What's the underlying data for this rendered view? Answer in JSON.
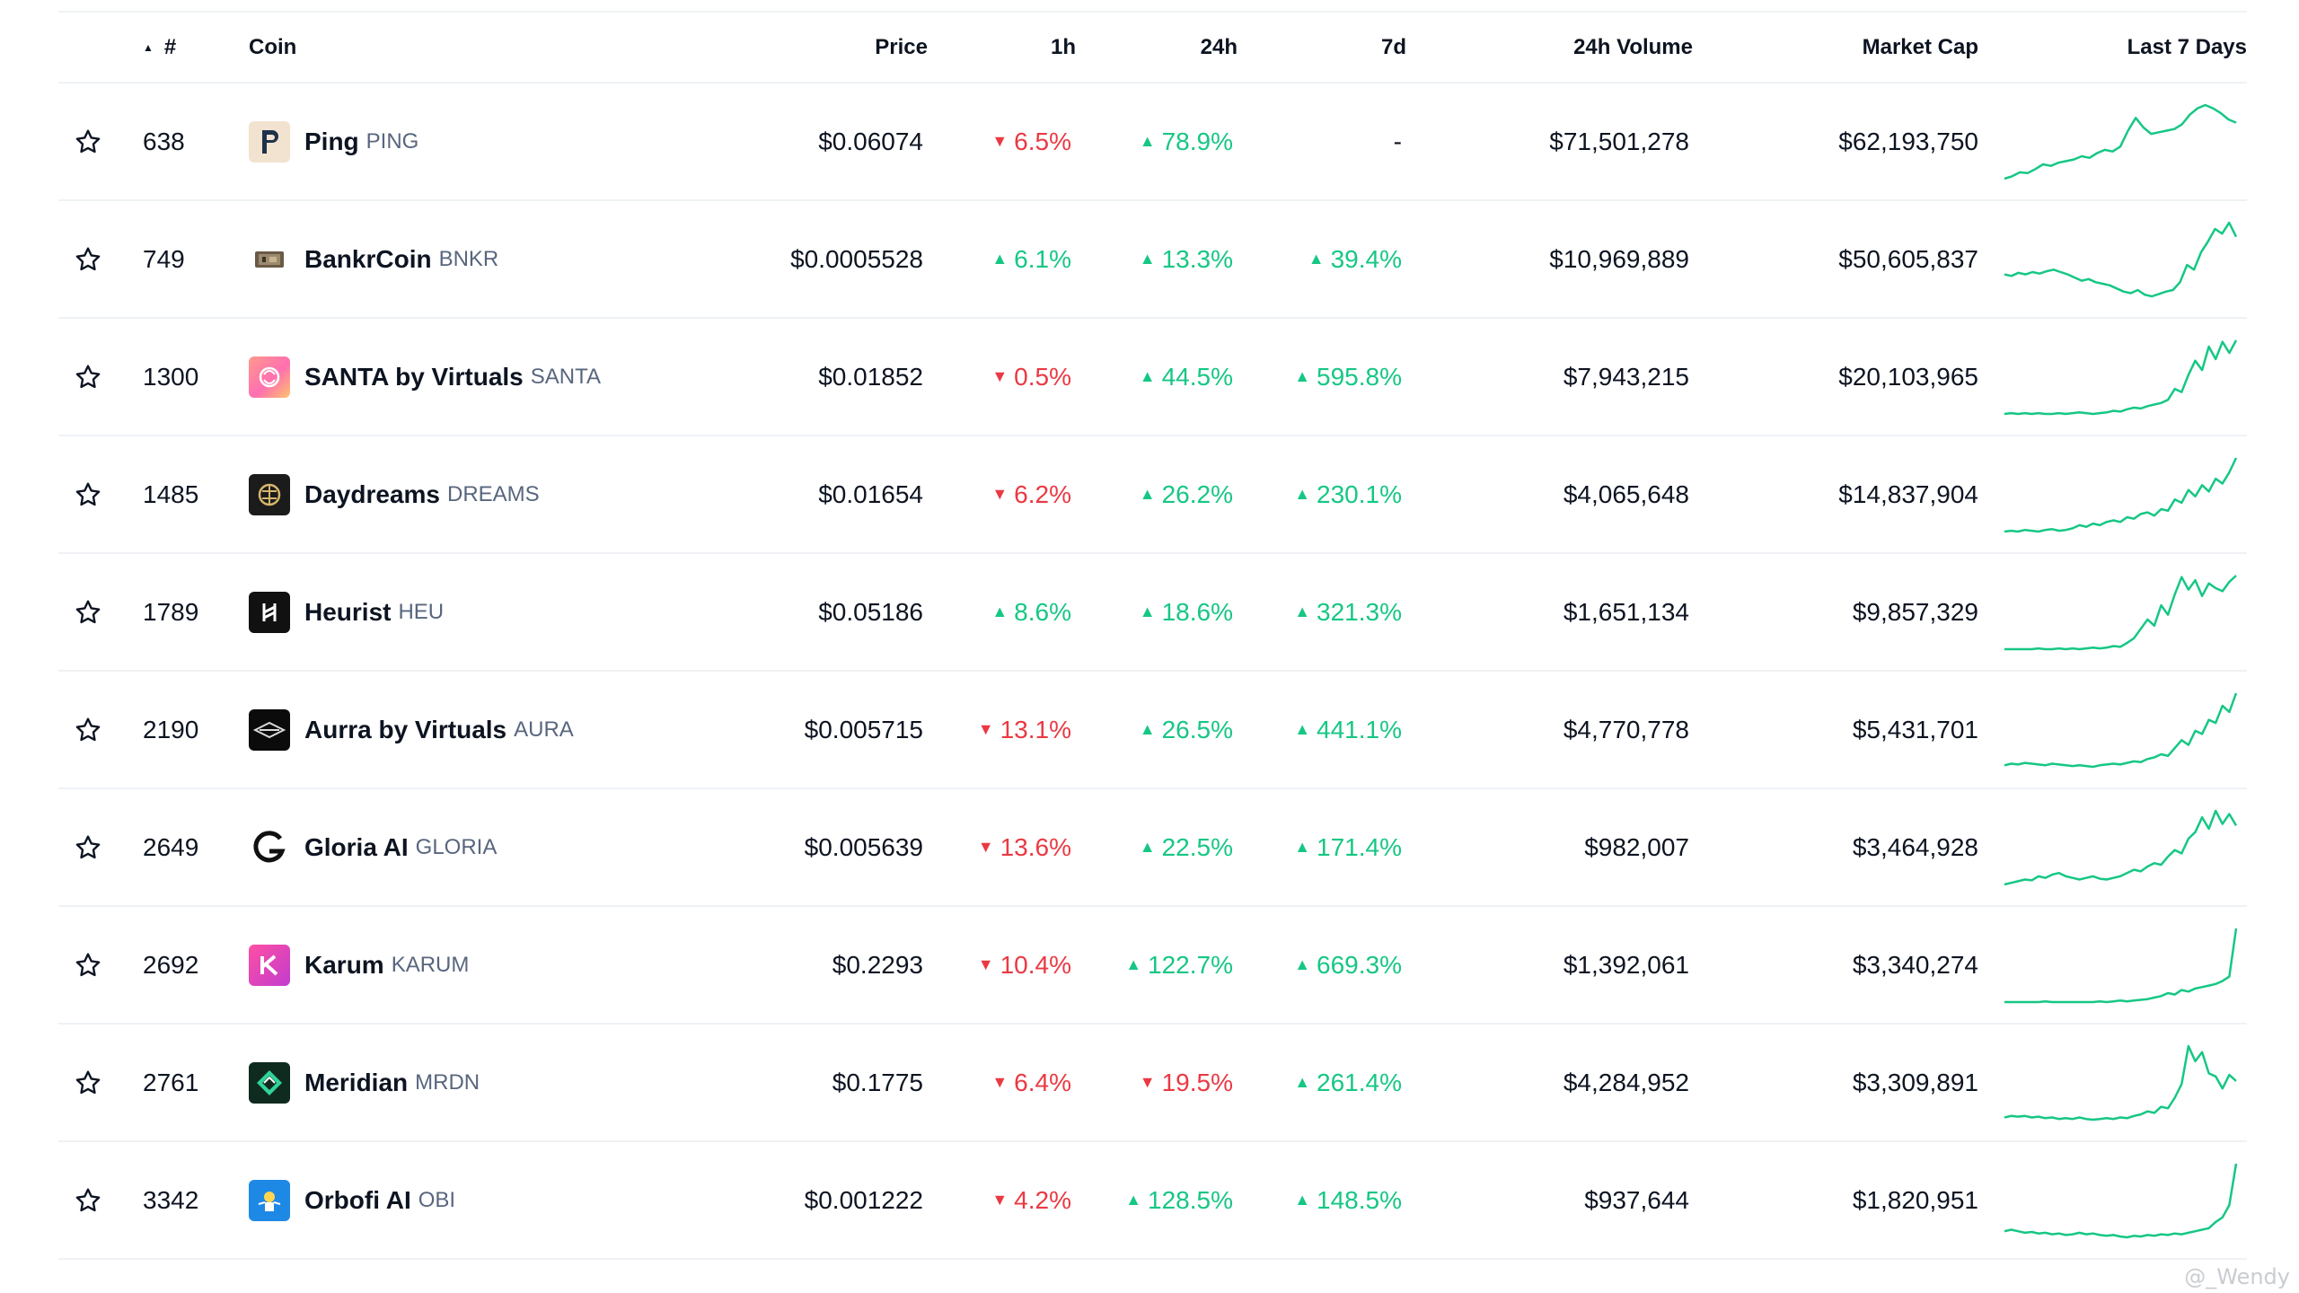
{
  "header": {
    "sort_indicator": "▲",
    "rank": "#",
    "coin": "Coin",
    "price": "Price",
    "h1": "1h",
    "h24": "24h",
    "d7": "7d",
    "volume": "24h Volume",
    "market_cap": "Market Cap",
    "last7": "Last 7 Days"
  },
  "colors": {
    "up": "#16c784",
    "down": "#ea3943",
    "sparkline": "#16c784"
  },
  "rows": [
    {
      "rank": "638",
      "name": "Ping",
      "symbol": "PING",
      "logo_icon": "ping-icon",
      "price": "$0.06074",
      "h1": "6.5%",
      "h1_dir": "down",
      "h24": "78.9%",
      "h24_dir": "up",
      "d7": "-",
      "d7_dir": "none",
      "volume": "$71,501,278",
      "mcap": "$62,193,750",
      "spark": [
        2,
        5,
        10,
        9,
        14,
        20,
        18,
        22,
        24,
        26,
        30,
        28,
        34,
        38,
        36,
        42,
        62,
        78,
        66,
        58,
        60,
        62,
        64,
        70,
        82,
        90,
        94,
        90,
        84,
        76,
        72
      ]
    },
    {
      "rank": "749",
      "name": "BankrCoin",
      "symbol": "BNKR",
      "logo_icon": "bankrcoin-icon",
      "price": "$0.0005528",
      "h1": "6.1%",
      "h1_dir": "up",
      "h24": "13.3%",
      "h24_dir": "up",
      "d7": "39.4%",
      "d7_dir": "up",
      "volume": "$10,969,889",
      "mcap": "$50,605,837",
      "spark": [
        30,
        28,
        32,
        30,
        33,
        31,
        34,
        36,
        33,
        30,
        26,
        22,
        24,
        20,
        18,
        16,
        12,
        8,
        6,
        10,
        4,
        2,
        5,
        8,
        10,
        20,
        42,
        36,
        58,
        72,
        88,
        82,
        96,
        78
      ]
    },
    {
      "rank": "1300",
      "name": "SANTA by Virtuals",
      "symbol": "SANTA",
      "logo_icon": "santa-icon",
      "price": "$0.01852",
      "h1": "0.5%",
      "h1_dir": "down",
      "h24": "44.5%",
      "h24_dir": "up",
      "d7": "595.8%",
      "d7_dir": "up",
      "volume": "$7,943,215",
      "mcap": "$20,103,965",
      "spark": [
        2,
        3,
        2,
        3,
        2,
        3,
        2,
        2,
        3,
        2,
        3,
        4,
        3,
        2,
        3,
        4,
        6,
        5,
        8,
        10,
        9,
        12,
        14,
        16,
        20,
        34,
        30,
        52,
        70,
        58,
        88,
        72,
        94,
        80,
        96
      ]
    },
    {
      "rank": "1485",
      "name": "Daydreams",
      "symbol": "DREAMS",
      "logo_icon": "daydreams-icon",
      "price": "$0.01654",
      "h1": "6.2%",
      "h1_dir": "down",
      "h24": "26.2%",
      "h24_dir": "up",
      "d7": "230.1%",
      "d7_dir": "up",
      "volume": "$4,065,648",
      "mcap": "$14,837,904",
      "spark": [
        4,
        5,
        4,
        6,
        5,
        4,
        6,
        7,
        5,
        6,
        8,
        12,
        10,
        14,
        12,
        16,
        18,
        16,
        22,
        20,
        26,
        28,
        24,
        32,
        30,
        44,
        40,
        56,
        48,
        62,
        54,
        70,
        64,
        78,
        96
      ]
    },
    {
      "rank": "1789",
      "name": "Heurist",
      "symbol": "HEU",
      "logo_icon": "heurist-icon",
      "price": "$0.05186",
      "h1": "8.6%",
      "h1_dir": "up",
      "h24": "18.6%",
      "h24_dir": "up",
      "d7": "321.3%",
      "d7_dir": "up",
      "volume": "$1,651,134",
      "mcap": "$9,857,329",
      "spark": [
        2,
        2,
        2,
        2,
        2,
        3,
        2,
        2,
        3,
        2,
        3,
        2,
        3,
        4,
        3,
        4,
        6,
        5,
        10,
        16,
        28,
        40,
        32,
        58,
        46,
        72,
        94,
        78,
        90,
        70,
        86,
        80,
        76,
        88,
        96
      ]
    },
    {
      "rank": "2190",
      "name": "Aurra by Virtuals",
      "symbol": "AURA",
      "logo_icon": "aurra-icon",
      "price": "$0.005715",
      "h1": "13.1%",
      "h1_dir": "down",
      "h24": "26.5%",
      "h24_dir": "up",
      "d7": "441.1%",
      "d7_dir": "up",
      "volume": "$4,770,778",
      "mcap": "$5,431,701",
      "spark": [
        4,
        6,
        5,
        7,
        6,
        5,
        4,
        6,
        5,
        4,
        3,
        4,
        3,
        2,
        4,
        5,
        6,
        5,
        7,
        9,
        8,
        12,
        14,
        18,
        16,
        26,
        36,
        30,
        48,
        44,
        62,
        58,
        80,
        72,
        96
      ]
    },
    {
      "rank": "2649",
      "name": "Gloria AI",
      "symbol": "GLORIA",
      "logo_icon": "gloria-icon",
      "price": "$0.005639",
      "h1": "13.6%",
      "h1_dir": "down",
      "h24": "22.5%",
      "h24_dir": "up",
      "d7": "171.4%",
      "d7_dir": "up",
      "volume": "$982,007",
      "mcap": "$3,464,928",
      "spark": [
        4,
        6,
        8,
        10,
        9,
        14,
        12,
        16,
        18,
        14,
        12,
        10,
        12,
        14,
        11,
        10,
        12,
        14,
        18,
        22,
        20,
        26,
        30,
        28,
        38,
        46,
        42,
        60,
        68,
        86,
        72,
        94,
        78,
        90,
        76
      ]
    },
    {
      "rank": "2692",
      "name": "Karum",
      "symbol": "KARUM",
      "logo_icon": "karum-icon",
      "price": "$0.2293",
      "h1": "10.4%",
      "h1_dir": "down",
      "h24": "122.7%",
      "h24_dir": "up",
      "d7": "669.3%",
      "d7_dir": "up",
      "volume": "$1,392,061",
      "mcap": "$3,340,274",
      "spark": [
        2,
        2,
        2,
        2,
        2,
        2,
        3,
        2,
        2,
        2,
        2,
        2,
        2,
        2,
        3,
        2,
        3,
        4,
        3,
        4,
        5,
        6,
        8,
        10,
        14,
        12,
        18,
        16,
        20,
        22,
        24,
        26,
        30,
        36,
        100
      ]
    },
    {
      "rank": "2761",
      "name": "Meridian",
      "symbol": "MRDN",
      "logo_icon": "meridian-icon",
      "price": "$0.1775",
      "h1": "6.4%",
      "h1_dir": "down",
      "h24": "19.5%",
      "h24_dir": "down",
      "d7": "261.4%",
      "d7_dir": "up",
      "volume": "$4,284,952",
      "mcap": "$3,309,891",
      "spark": [
        4,
        6,
        5,
        6,
        4,
        5,
        3,
        4,
        2,
        3,
        2,
        4,
        2,
        1,
        2,
        3,
        2,
        4,
        3,
        6,
        8,
        12,
        10,
        18,
        16,
        30,
        48,
        98,
        78,
        90,
        62,
        58,
        42,
        60,
        52
      ]
    },
    {
      "rank": "3342",
      "name": "Orbofi AI",
      "symbol": "OBI",
      "logo_icon": "orbofi-icon",
      "price": "$0.001222",
      "h1": "4.2%",
      "h1_dir": "down",
      "h24": "128.5%",
      "h24_dir": "up",
      "d7": "148.5%",
      "d7_dir": "up",
      "volume": "$937,644",
      "mcap": "$1,820,951",
      "spark": [
        8,
        10,
        8,
        6,
        7,
        5,
        6,
        4,
        5,
        3,
        4,
        6,
        4,
        5,
        3,
        2,
        3,
        1,
        0,
        2,
        1,
        3,
        2,
        4,
        3,
        5,
        4,
        6,
        8,
        10,
        12,
        20,
        26,
        42,
        96
      ]
    }
  ],
  "watermark": "@_Wendy"
}
